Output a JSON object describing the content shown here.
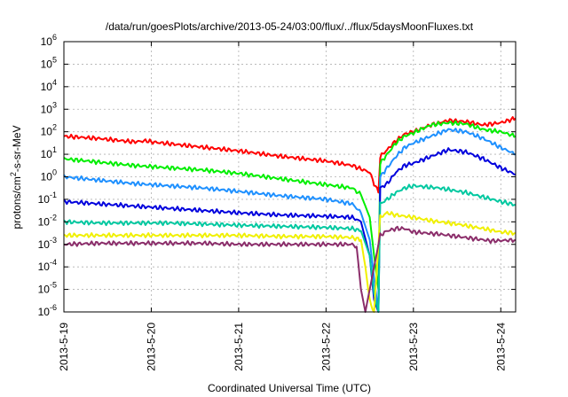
{
  "chart_data": {
    "type": "line",
    "title": "/data/run/goesPlots/archive/2013-05-24/03:00/flux/../flux/5daysMoonFluxes.txt",
    "xlabel": "Coordinated Universal Time (UTC)",
    "ylabel_main": "protons/cm",
    "ylabel_sup": "2",
    "ylabel_rest": "-s-sr-MeV",
    "y_scale": "log",
    "ylim": [
      1e-06,
      1000000.0
    ],
    "xlim": [
      0,
      5.17
    ],
    "grid": true,
    "y_ticks": [
      {
        "exp": -6,
        "label": "10",
        "sup": "-6"
      },
      {
        "exp": -5,
        "label": "10",
        "sup": "-5"
      },
      {
        "exp": -4,
        "label": "10",
        "sup": "-4"
      },
      {
        "exp": -3,
        "label": "10",
        "sup": "-3"
      },
      {
        "exp": -2,
        "label": "10",
        "sup": "-2"
      },
      {
        "exp": -1,
        "label": "10",
        "sup": "-1"
      },
      {
        "exp": 0,
        "label": "10",
        "sup": "0"
      },
      {
        "exp": 1,
        "label": "10",
        "sup": "1"
      },
      {
        "exp": 2,
        "label": "10",
        "sup": "2"
      },
      {
        "exp": 3,
        "label": "10",
        "sup": "3"
      },
      {
        "exp": 4,
        "label": "10",
        "sup": "4"
      },
      {
        "exp": 5,
        "label": "10",
        "sup": "5"
      },
      {
        "exp": 6,
        "label": "10",
        "sup": "6"
      }
    ],
    "x_ticks": [
      {
        "day": 0,
        "label": "2013-5-19"
      },
      {
        "day": 1,
        "label": "2013-5-20"
      },
      {
        "day": 2,
        "label": "2013-5-21"
      },
      {
        "day": 3,
        "label": "2013-5-22"
      },
      {
        "day": 4,
        "label": "2013-5-23"
      },
      {
        "day": 5,
        "label": "2013-5-24"
      }
    ],
    "series": [
      {
        "color": "#ff0000",
        "points": [
          [
            0,
            1.8
          ],
          [
            0.4,
            1.7
          ],
          [
            0.8,
            1.55
          ],
          [
            0.95,
            1.6
          ],
          [
            1.0,
            1.55
          ],
          [
            1.5,
            1.35
          ],
          [
            2.0,
            1.15
          ],
          [
            2.5,
            0.9
          ],
          [
            3.0,
            0.7
          ],
          [
            3.3,
            0.5
          ],
          [
            3.5,
            0.2
          ],
          [
            3.55,
            -0.3
          ],
          [
            3.6,
            -0.7
          ],
          [
            3.62,
            0.9
          ],
          [
            3.7,
            1.2
          ],
          [
            3.8,
            1.6
          ],
          [
            3.9,
            1.9
          ],
          [
            4.0,
            2.0
          ],
          [
            4.2,
            2.3
          ],
          [
            4.4,
            2.5
          ],
          [
            4.6,
            2.45
          ],
          [
            4.8,
            2.3
          ],
          [
            5.0,
            2.4
          ],
          [
            5.17,
            2.6
          ]
        ]
      },
      {
        "color": "#00ee00",
        "points": [
          [
            0,
            0.8
          ],
          [
            0.4,
            0.65
          ],
          [
            0.8,
            0.5
          ],
          [
            1.2,
            0.4
          ],
          [
            1.6,
            0.3
          ],
          [
            2.0,
            0.15
          ],
          [
            2.5,
            -0.1
          ],
          [
            3.0,
            -0.35
          ],
          [
            3.3,
            -0.5
          ],
          [
            3.4,
            -0.8
          ],
          [
            3.5,
            -1.8
          ],
          [
            3.55,
            -3.5
          ],
          [
            3.6,
            -5.0
          ],
          [
            3.62,
            0.6
          ],
          [
            3.7,
            1.0
          ],
          [
            3.8,
            1.5
          ],
          [
            3.9,
            1.8
          ],
          [
            4.0,
            1.95
          ],
          [
            4.2,
            2.3
          ],
          [
            4.4,
            2.4
          ],
          [
            4.6,
            2.35
          ],
          [
            4.8,
            2.1
          ],
          [
            5.0,
            2.0
          ],
          [
            5.17,
            1.8
          ]
        ]
      },
      {
        "color": "#1e90ff",
        "points": [
          [
            0,
            0.0
          ],
          [
            0.4,
            -0.15
          ],
          [
            0.8,
            -0.3
          ],
          [
            1.2,
            -0.4
          ],
          [
            1.6,
            -0.5
          ],
          [
            2.0,
            -0.65
          ],
          [
            2.5,
            -0.85
          ],
          [
            3.0,
            -1.0
          ],
          [
            3.3,
            -1.2
          ],
          [
            3.4,
            -1.6
          ],
          [
            3.5,
            -2.8
          ],
          [
            3.55,
            -4.5
          ],
          [
            3.6,
            -6.0
          ],
          [
            3.62,
            0.0
          ],
          [
            3.7,
            0.4
          ],
          [
            3.8,
            0.9
          ],
          [
            3.9,
            1.3
          ],
          [
            4.0,
            1.5
          ],
          [
            4.2,
            1.8
          ],
          [
            4.4,
            2.1
          ],
          [
            4.6,
            2.0
          ],
          [
            4.8,
            1.7
          ],
          [
            5.0,
            1.3
          ],
          [
            5.17,
            1.0
          ]
        ]
      },
      {
        "color": "#0000dd",
        "points": [
          [
            0,
            -1.1
          ],
          [
            0.4,
            -1.2
          ],
          [
            0.8,
            -1.3
          ],
          [
            1.2,
            -1.4
          ],
          [
            1.6,
            -1.5
          ],
          [
            2.0,
            -1.6
          ],
          [
            2.5,
            -1.7
          ],
          [
            3.0,
            -1.75
          ],
          [
            3.3,
            -1.8
          ],
          [
            3.4,
            -2.0
          ],
          [
            3.5,
            -3.5
          ],
          [
            3.55,
            -5.5
          ],
          [
            3.6,
            -6.0
          ],
          [
            3.62,
            -0.5
          ],
          [
            3.7,
            -0.3
          ],
          [
            3.8,
            0.2
          ],
          [
            3.9,
            0.5
          ],
          [
            4.0,
            0.6
          ],
          [
            4.2,
            0.9
          ],
          [
            4.4,
            1.2
          ],
          [
            4.6,
            1.1
          ],
          [
            4.8,
            0.8
          ],
          [
            5.0,
            0.4
          ],
          [
            5.17,
            0.1
          ]
        ]
      },
      {
        "color": "#00c8a0",
        "points": [
          [
            0,
            -2.0
          ],
          [
            0.4,
            -2.05
          ],
          [
            0.8,
            -2.05
          ],
          [
            1.2,
            -2.05
          ],
          [
            1.6,
            -2.1
          ],
          [
            2.0,
            -2.15
          ],
          [
            2.5,
            -2.2
          ],
          [
            3.0,
            -2.25
          ],
          [
            3.3,
            -2.3
          ],
          [
            3.4,
            -2.4
          ],
          [
            3.5,
            -3.5
          ],
          [
            3.55,
            -5.2
          ],
          [
            3.6,
            -6.0
          ],
          [
            3.62,
            -1.2
          ],
          [
            3.7,
            -1.0
          ],
          [
            3.8,
            -0.7
          ],
          [
            3.9,
            -0.5
          ],
          [
            4.0,
            -0.4
          ],
          [
            4.3,
            -0.5
          ],
          [
            4.6,
            -0.7
          ],
          [
            4.8,
            -0.9
          ],
          [
            5.0,
            -1.1
          ],
          [
            5.17,
            -1.25
          ]
        ]
      },
      {
        "color": "#f0f000",
        "points": [
          [
            0,
            -2.6
          ],
          [
            0.4,
            -2.6
          ],
          [
            0.8,
            -2.6
          ],
          [
            1.2,
            -2.6
          ],
          [
            1.6,
            -2.6
          ],
          [
            2.0,
            -2.6
          ],
          [
            2.5,
            -2.65
          ],
          [
            3.0,
            -2.65
          ],
          [
            3.3,
            -2.7
          ],
          [
            3.4,
            -2.8
          ],
          [
            3.45,
            -4.0
          ],
          [
            3.5,
            -5.5
          ],
          [
            3.55,
            -6.0
          ],
          [
            3.62,
            -1.8
          ],
          [
            3.7,
            -1.6
          ],
          [
            3.8,
            -1.7
          ],
          [
            4.0,
            -1.8
          ],
          [
            4.2,
            -1.95
          ],
          [
            4.5,
            -2.1
          ],
          [
            4.8,
            -2.3
          ],
          [
            5.0,
            -2.45
          ],
          [
            5.17,
            -2.5
          ]
        ]
      },
      {
        "color": "#8b2d6a",
        "points": [
          [
            0,
            -3.0
          ],
          [
            0.4,
            -2.95
          ],
          [
            0.8,
            -2.95
          ],
          [
            1.2,
            -2.95
          ],
          [
            1.6,
            -2.95
          ],
          [
            2.0,
            -3.0
          ],
          [
            2.5,
            -3.0
          ],
          [
            3.0,
            -3.0
          ],
          [
            3.3,
            -3.0
          ],
          [
            3.35,
            -3.1
          ],
          [
            3.4,
            -5.0
          ],
          [
            3.45,
            -6.0
          ],
          [
            3.62,
            -2.6
          ],
          [
            3.7,
            -2.4
          ],
          [
            3.8,
            -2.3
          ],
          [
            3.9,
            -2.3
          ],
          [
            4.0,
            -2.45
          ],
          [
            4.3,
            -2.55
          ],
          [
            4.6,
            -2.7
          ],
          [
            4.9,
            -2.85
          ],
          [
            5.17,
            -2.8
          ]
        ]
      }
    ]
  }
}
